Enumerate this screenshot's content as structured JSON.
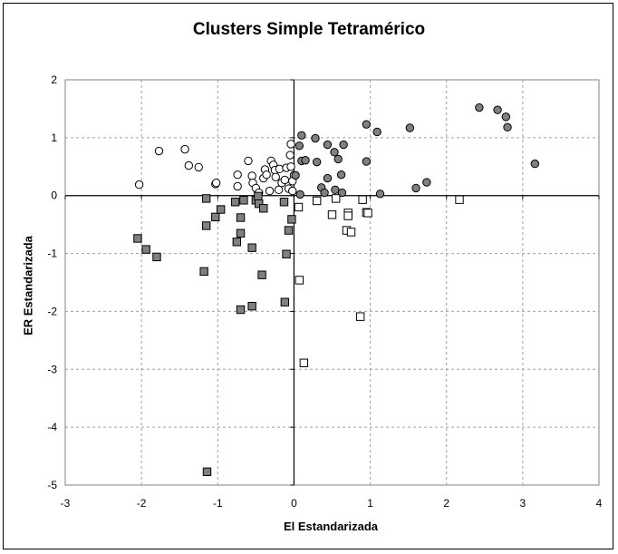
{
  "chart_data": {
    "type": "scatter",
    "title": "Clusters Simple Tetramérico",
    "xlabel": "El Estandarizada",
    "ylabel": "ER Estandarizada",
    "xlim": [
      -3,
      4
    ],
    "ylim": [
      -5,
      2
    ],
    "x_ticks": [
      "-3",
      "-2",
      "-1",
      "0",
      "1",
      "2",
      "3",
      "4"
    ],
    "y_ticks": [
      "2",
      "1",
      "0",
      "-1",
      "-2",
      "-3",
      "-4",
      "-5"
    ],
    "grid": true,
    "legend": "none",
    "series": [
      {
        "marker": "circle",
        "fill": "#ffffff",
        "stroke": "#000000",
        "points": [
          [
            -2.03,
            0.19
          ],
          [
            -1.77,
            0.77
          ],
          [
            -1.43,
            0.8
          ],
          [
            -1.38,
            0.52
          ],
          [
            -1.25,
            0.49
          ],
          [
            -1.03,
            0.2
          ],
          [
            -1.02,
            0.22
          ],
          [
            -0.74,
            0.36
          ],
          [
            -0.74,
            0.16
          ],
          [
            -0.6,
            0.6
          ],
          [
            -0.55,
            0.34
          ],
          [
            -0.54,
            0.22
          ],
          [
            -0.5,
            0.13
          ],
          [
            -0.46,
            0.05
          ],
          [
            -0.4,
            0.3
          ],
          [
            -0.38,
            0.45
          ],
          [
            -0.36,
            0.36
          ],
          [
            -0.32,
            0.08
          ],
          [
            -0.3,
            0.6
          ],
          [
            -0.27,
            0.53
          ],
          [
            -0.25,
            0.44
          ],
          [
            -0.24,
            0.32
          ],
          [
            -0.2,
            0.1
          ],
          [
            -0.19,
            0.46
          ],
          [
            -0.16,
            0.22
          ],
          [
            -0.12,
            0.27
          ],
          [
            -0.1,
            0.48
          ],
          [
            -0.07,
            0.12
          ],
          [
            -0.05,
            0.7
          ],
          [
            -0.04,
            0.89
          ],
          [
            -0.02,
            0.08
          ],
          [
            0.0,
            0.35
          ],
          [
            -0.02,
            0.25
          ],
          [
            -0.04,
            0.5
          ]
        ]
      },
      {
        "marker": "circle",
        "fill": "#808080",
        "stroke": "#000000",
        "points": [
          [
            0.02,
            0.35
          ],
          [
            0.07,
            0.86
          ],
          [
            0.1,
            1.04
          ],
          [
            0.1,
            0.6
          ],
          [
            0.15,
            0.61
          ],
          [
            0.28,
            0.99
          ],
          [
            0.3,
            0.58
          ],
          [
            0.36,
            0.14
          ],
          [
            0.4,
            0.05
          ],
          [
            0.44,
            0.3
          ],
          [
            0.44,
            0.88
          ],
          [
            0.53,
            0.75
          ],
          [
            0.54,
            0.1
          ],
          [
            0.58,
            0.63
          ],
          [
            0.62,
            0.36
          ],
          [
            0.63,
            0.05
          ],
          [
            0.65,
            0.88
          ],
          [
            0.95,
            1.23
          ],
          [
            0.95,
            0.59
          ],
          [
            1.09,
            1.1
          ],
          [
            1.13,
            0.03
          ],
          [
            1.52,
            1.17
          ],
          [
            1.6,
            0.13
          ],
          [
            1.74,
            0.23
          ],
          [
            2.43,
            1.52
          ],
          [
            2.67,
            1.48
          ],
          [
            2.78,
            1.36
          ],
          [
            2.8,
            1.18
          ],
          [
            3.16,
            0.55
          ],
          [
            0.08,
            0.02
          ]
        ]
      },
      {
        "marker": "square",
        "fill": "#ffffff",
        "stroke": "#000000",
        "points": [
          [
            0.06,
            -0.2
          ],
          [
            0.07,
            -1.46
          ],
          [
            0.13,
            -2.89
          ],
          [
            0.3,
            -0.09
          ],
          [
            0.5,
            -0.33
          ],
          [
            0.55,
            -0.05
          ],
          [
            0.69,
            -0.6
          ],
          [
            0.71,
            -0.3
          ],
          [
            0.71,
            -0.35
          ],
          [
            0.75,
            -0.63
          ],
          [
            0.87,
            -2.09
          ],
          [
            0.9,
            -0.07
          ],
          [
            0.95,
            -0.29
          ],
          [
            0.97,
            -0.3
          ],
          [
            2.17,
            -0.07
          ]
        ]
      },
      {
        "marker": "square",
        "fill": "#808080",
        "stroke": "#000000",
        "points": [
          [
            -2.05,
            -0.74
          ],
          [
            -1.94,
            -0.93
          ],
          [
            -1.8,
            -1.06
          ],
          [
            -1.18,
            -1.31
          ],
          [
            -1.15,
            -0.05
          ],
          [
            -1.15,
            -0.52
          ],
          [
            -1.14,
            -4.77
          ],
          [
            -1.03,
            -0.37
          ],
          [
            -0.96,
            -0.24
          ],
          [
            -0.77,
            -0.11
          ],
          [
            -0.75,
            -0.8
          ],
          [
            -0.7,
            -1.97
          ],
          [
            -0.7,
            -0.65
          ],
          [
            -0.7,
            -0.38
          ],
          [
            -0.66,
            -0.08
          ],
          [
            -0.55,
            -0.9
          ],
          [
            -0.55,
            -1.91
          ],
          [
            -0.5,
            -0.08
          ],
          [
            -0.47,
            -0.01
          ],
          [
            -0.46,
            -0.14
          ],
          [
            -0.42,
            -1.37
          ],
          [
            -0.4,
            -0.22
          ],
          [
            -0.13,
            -0.11
          ],
          [
            -0.12,
            -1.84
          ],
          [
            -0.1,
            -1.01
          ],
          [
            -0.07,
            -0.6
          ],
          [
            -0.03,
            -0.41
          ]
        ]
      }
    ]
  }
}
